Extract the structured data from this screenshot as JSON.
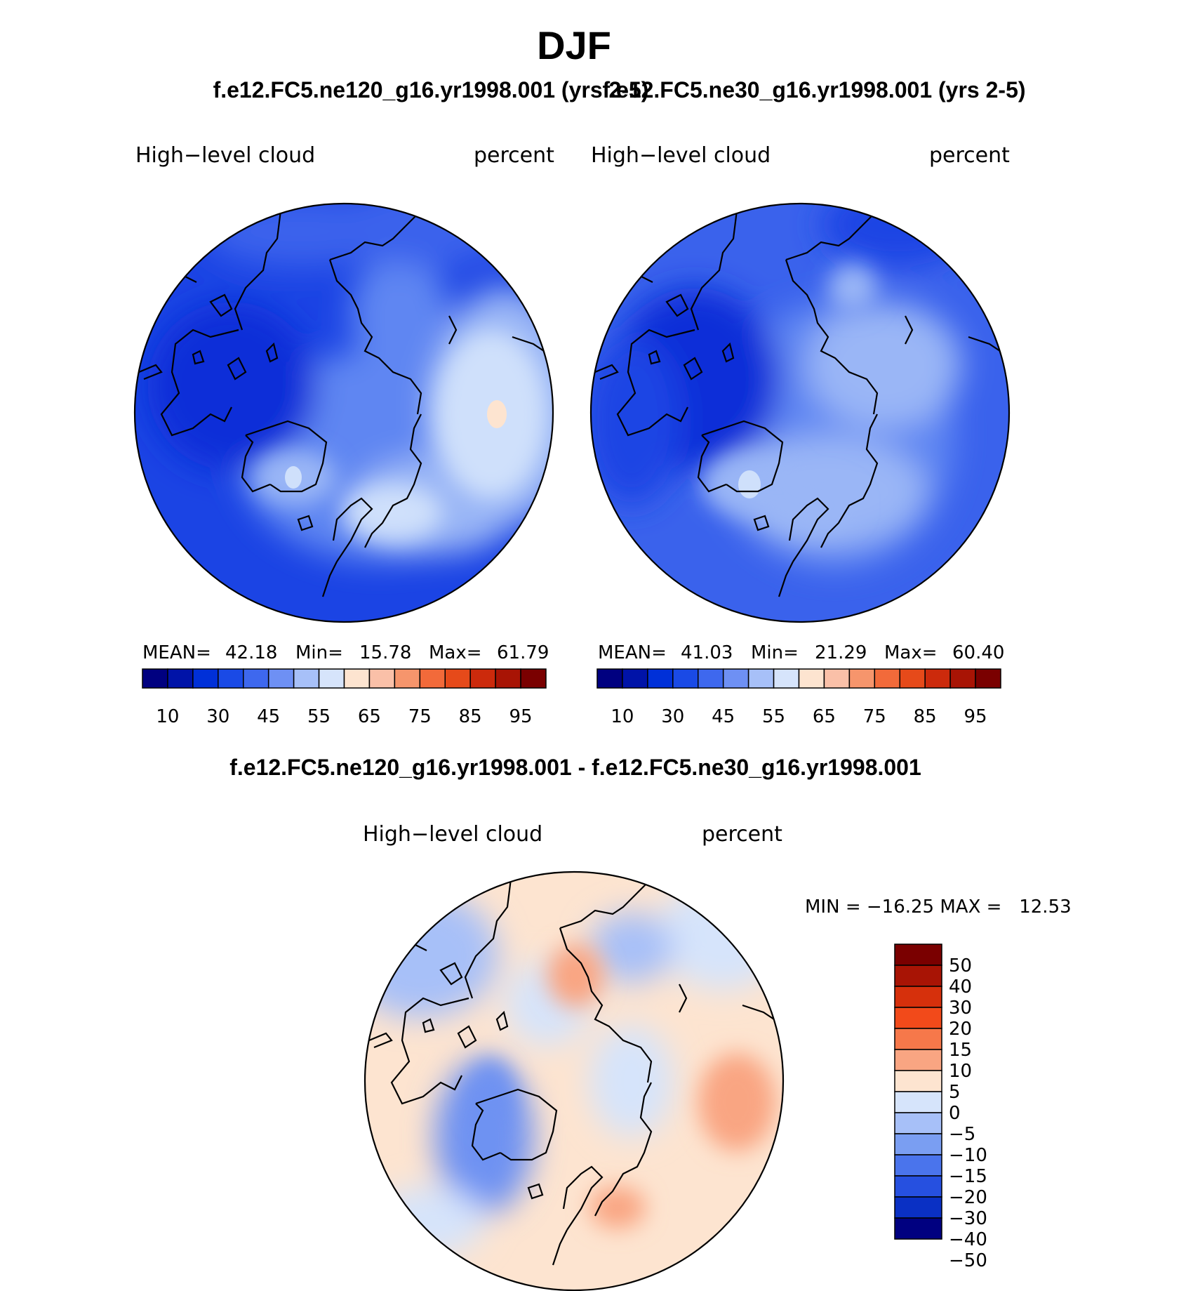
{
  "figure": {
    "season": "DJF",
    "case_titles": [
      "f.e12.FC5.ne120_g16.yr1998.001 (yrs 2-5)",
      "f.e12.FC5.ne30_g16.yr1998.001 (yrs 2-5)"
    ],
    "diff_title": "f.e12.FC5.ne120_g16.yr1998.001 - f.e12.FC5.ne30_g16.yr1998.001"
  },
  "panels": [
    {
      "id": "ne120",
      "variable": "High−level cloud",
      "units": "percent",
      "stats": {
        "mean_label": "MEAN=",
        "mean": "42.18",
        "min_label": "Min=",
        "min": "15.78",
        "max_label": "Max=",
        "max": "61.79"
      }
    },
    {
      "id": "ne30",
      "variable": "High−level cloud",
      "units": "percent",
      "stats": {
        "mean_label": "MEAN=",
        "mean": "41.03",
        "min_label": "Min=",
        "min": "21.29",
        "max_label": "Max=",
        "max": "60.40"
      }
    },
    {
      "id": "diff",
      "variable": "High−level cloud",
      "units": "percent",
      "stats": {
        "text": "MIN = −16.25 MAX =   12.53"
      }
    }
  ],
  "colorbars": {
    "abs": {
      "colors": [
        "#000080",
        "#0013a8",
        "#0030d8",
        "#1a4ae6",
        "#3e68ee",
        "#6e90f4",
        "#a7c0f8",
        "#d6e4fb",
        "#fde4d0",
        "#fac0a8",
        "#f6956c",
        "#f26a3a",
        "#e64a1a",
        "#cc2a0c",
        "#a81405",
        "#7a0000"
      ],
      "tick_labels": [
        "10",
        "30",
        "45",
        "55",
        "65",
        "75",
        "85",
        "95"
      ]
    },
    "diff": {
      "colors": [
        "#7a0000",
        "#a81405",
        "#d6300c",
        "#f24a1a",
        "#f6784a",
        "#f9a582",
        "#fde4d0",
        "#d6e4fb",
        "#a7c0f8",
        "#7a9ef2",
        "#4a74ec",
        "#2650e0",
        "#0a30c4",
        "#000080"
      ],
      "tick_labels": [
        "50",
        "40",
        "30",
        "20",
        "15",
        "10",
        "5",
        "0",
        "−5",
        "−10",
        "−15",
        "−20",
        "−30",
        "−40",
        "−50"
      ]
    }
  },
  "map": {
    "projection": "North polar stereographic",
    "abs_palette": [
      "#0a2ed8",
      "#1b44e4",
      "#3a62ec",
      "#5f86f2",
      "#9ab6f6",
      "#cfe0fb",
      "#fde4d0"
    ],
    "diff_palette": [
      "#6e92f2",
      "#a7c0f8",
      "#d6e4fb",
      "#fde4d0",
      "#f9a582"
    ]
  }
}
